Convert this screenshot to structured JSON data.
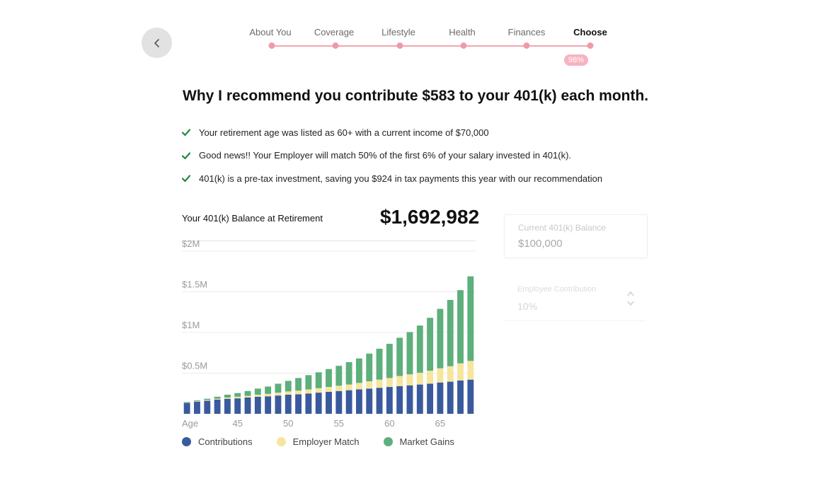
{
  "nav": {
    "back_icon": "chevron-left-icon"
  },
  "steps": [
    {
      "label": "About You",
      "active": false
    },
    {
      "label": "Coverage",
      "active": false
    },
    {
      "label": "Lifestyle",
      "active": false
    },
    {
      "label": "Health",
      "active": false
    },
    {
      "label": "Finances",
      "active": false
    },
    {
      "label": "Choose",
      "active": true
    }
  ],
  "progress": {
    "label": "98%",
    "value": 0.98
  },
  "headline": "Why I recommend you contribute $583 to your 401(k) each month.",
  "reasons": [
    "Your retirement age was listed as 60+ with a current income of $70,000",
    "Good news!! Your Employer will match 50% of the first 6% of your salary invested in 401(k).",
    "401(k) is a pre-tax investment, saving you $924 in tax payments this year with our recommendation"
  ],
  "balance": {
    "label": "Your 401(k) Balance at Retirement",
    "value": "$1,692,982"
  },
  "side_panel": {
    "current_balance_label": "Current 401(k) Balance",
    "current_balance_value": "$100,000",
    "contribution_label": "Employee Contribution",
    "contribution_value": "10%"
  },
  "colors": {
    "contributions": "#3a5a9e",
    "employer_match": "#f6e59c",
    "market_gains": "#5daf7b",
    "progress": "#f09aa8",
    "check": "#1e8a3e"
  },
  "chart_data": {
    "type": "bar",
    "stacked": true,
    "x": [
      40,
      41,
      42,
      43,
      44,
      45,
      46,
      47,
      48,
      49,
      50,
      51,
      52,
      53,
      54,
      55,
      56,
      57,
      58,
      59,
      60,
      61,
      62,
      63,
      64,
      65,
      66,
      67,
      68
    ],
    "xticks": [
      "Age",
      "45",
      "50",
      "55",
      "60",
      "65"
    ],
    "yticks": [
      "$2M",
      "$1.5M",
      "$1M",
      "$0.5M"
    ],
    "ylim": [
      0,
      2000000
    ],
    "grid": true,
    "legend_position": "bottom",
    "series": [
      {
        "name": "Contributions",
        "values": [
          135000,
          150000,
          160000,
          175000,
          185000,
          190000,
          200000,
          210000,
          215000,
          225000,
          235000,
          240000,
          250000,
          260000,
          270000,
          280000,
          290000,
          300000,
          310000,
          320000,
          330000,
          340000,
          350000,
          360000,
          370000,
          385000,
          395000,
          410000,
          420000
        ]
      },
      {
        "name": "Employer Match",
        "values": [
          5000,
          7000,
          10000,
          10000,
          15000,
          20000,
          20000,
          25000,
          30000,
          35000,
          40000,
          45000,
          50000,
          55000,
          60000,
          65000,
          70000,
          80000,
          90000,
          100000,
          110000,
          125000,
          135000,
          145000,
          160000,
          175000,
          190000,
          210000,
          230000
        ]
      },
      {
        "name": "Market Gains",
        "values": [
          5000,
          8000,
          15000,
          25000,
          35000,
          45000,
          60000,
          75000,
          90000,
          110000,
          130000,
          155000,
          175000,
          195000,
          220000,
          245000,
          275000,
          300000,
          340000,
          380000,
          420000,
          470000,
          520000,
          580000,
          650000,
          730000,
          815000,
          900000,
          1040000
        ]
      }
    ]
  }
}
